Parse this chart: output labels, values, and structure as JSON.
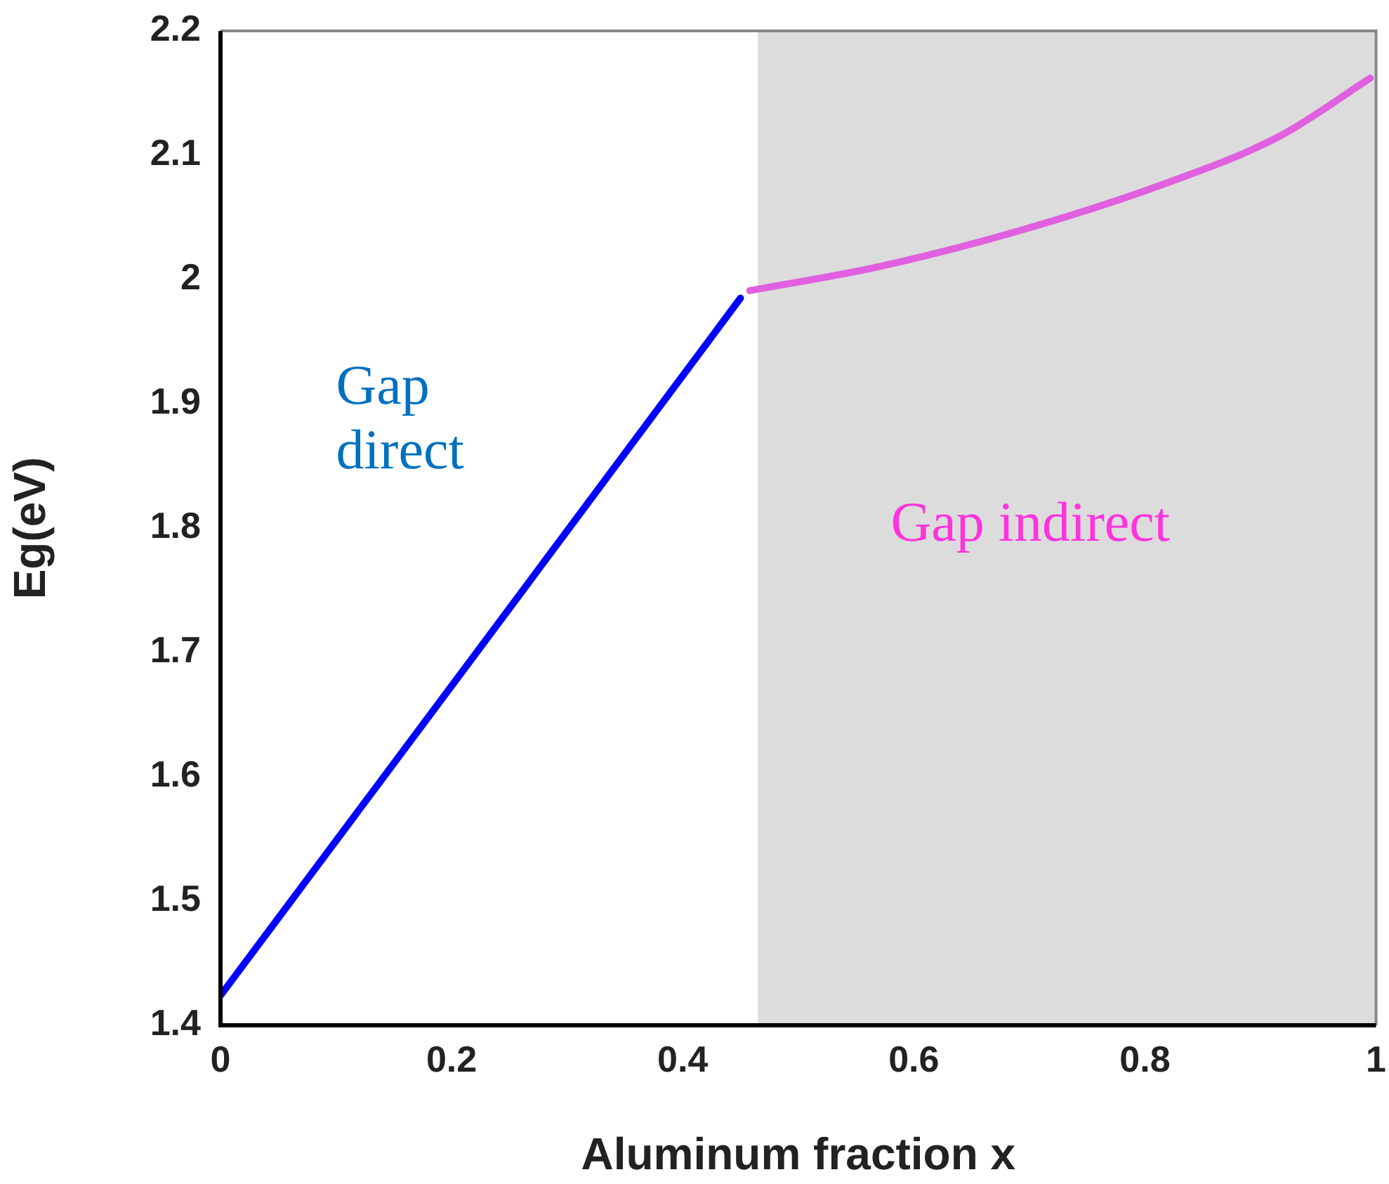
{
  "chart_data": {
    "type": "line",
    "xlabel": "Aluminum fraction x",
    "ylabel": "Eg(eV)",
    "xlim": [
      0,
      1
    ],
    "xticks": [
      0,
      0.2,
      0.4,
      0.6,
      0.8,
      1
    ],
    "ylim": [
      1.4,
      2.2
    ],
    "yticks": [
      1.4,
      1.5,
      1.6,
      1.7,
      1.8,
      1.9,
      2,
      2.1,
      2.2
    ],
    "series": [
      {
        "color": "#0000ff",
        "x": [
          0,
          0.2,
          0.45
        ],
        "values": [
          1.424,
          1.673,
          1.985
        ]
      },
      {
        "color": "#e060e0",
        "x": [
          0.458,
          0.573,
          0.694,
          0.814,
          0.916,
          0.995
        ],
        "values": [
          1.991,
          2.011,
          2.04,
          2.076,
          2.115,
          2.162
        ]
      }
    ],
    "bands": [
      {
        "axis": "x",
        "from": 0.465,
        "to": 1,
        "color": "#dcdcdc"
      }
    ],
    "annotations": [
      "Gap\ndirect",
      "Gap indirect"
    ],
    "grid": false,
    "legend": false,
    "marker": "none",
    "line_style": "solid"
  }
}
